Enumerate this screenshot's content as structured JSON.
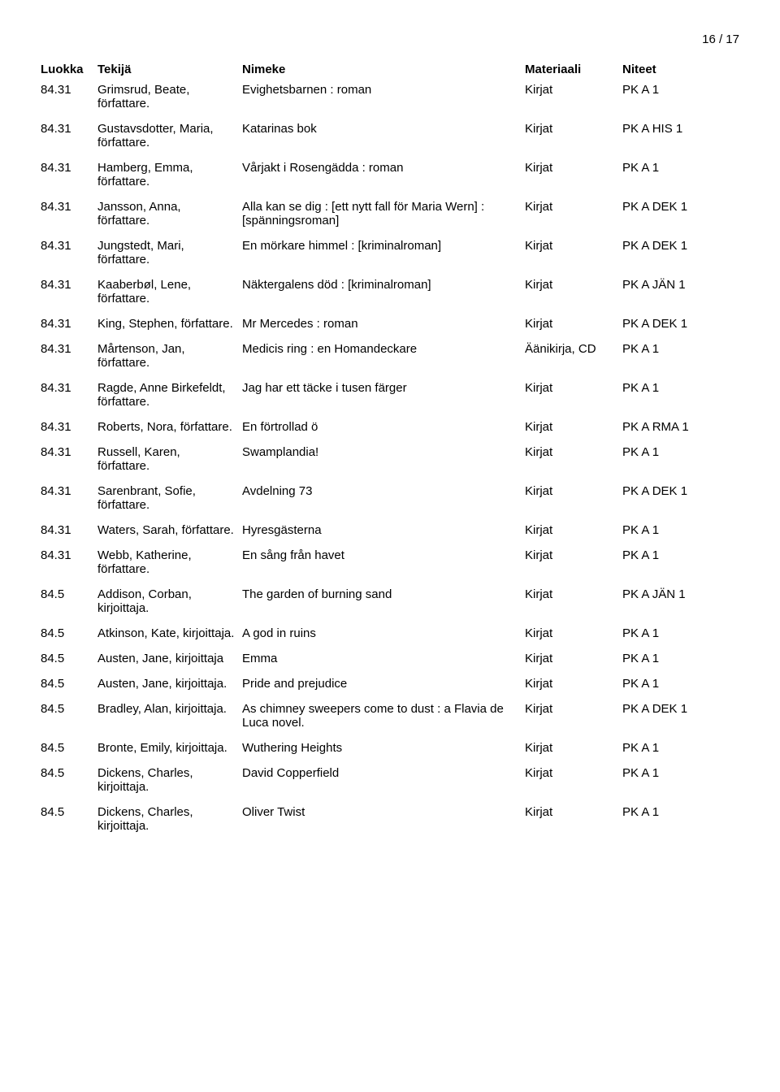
{
  "page_number": "16 / 17",
  "headers": {
    "luokka": "Luokka",
    "tekija": "Tekijä",
    "nimeke": "Nimeke",
    "materiaali": "Materiaali",
    "niteet": "Niteet"
  },
  "rows": [
    {
      "luokka": "84.31",
      "tekija": "Grimsrud, Beate, författare.",
      "nimeke": "Evighetsbarnen : roman",
      "materiaali": "Kirjat",
      "niteet": "PK A 1"
    },
    {
      "luokka": "84.31",
      "tekija": "Gustavsdotter, Maria, författare.",
      "nimeke": "Katarinas bok",
      "materiaali": "Kirjat",
      "niteet": "PK A HIS 1"
    },
    {
      "luokka": "84.31",
      "tekija": "Hamberg, Emma, författare.",
      "nimeke": "Vårjakt i Rosengädda : roman",
      "materiaali": "Kirjat",
      "niteet": "PK A 1"
    },
    {
      "luokka": "84.31",
      "tekija": "Jansson, Anna, författare.",
      "nimeke": "Alla kan se dig : [ett nytt fall för Maria Wern] : [spänningsroman]",
      "materiaali": "Kirjat",
      "niteet": "PK A DEK 1"
    },
    {
      "luokka": "84.31",
      "tekija": "Jungstedt, Mari, författare.",
      "nimeke": "En mörkare himmel : [kriminalroman]",
      "materiaali": "Kirjat",
      "niteet": "PK A DEK 1"
    },
    {
      "luokka": "84.31",
      "tekija": "Kaaberbøl, Lene, författare.",
      "nimeke": "Näktergalens död : [kriminalroman]",
      "materiaali": "Kirjat",
      "niteet": "PK A JÄN 1"
    },
    {
      "luokka": "84.31",
      "tekija": "King, Stephen, författare.",
      "nimeke": "Mr Mercedes : roman",
      "materiaali": "Kirjat",
      "niteet": "PK A DEK 1"
    },
    {
      "luokka": "84.31",
      "tekija": "Mårtenson, Jan, författare.",
      "nimeke": "Medicis ring : en Homandeckare",
      "materiaali": "Äänikirja, CD",
      "niteet": "PK A 1"
    },
    {
      "luokka": "84.31",
      "tekija": "Ragde, Anne Birkefeldt, författare.",
      "nimeke": "Jag har ett täcke i tusen färger",
      "materiaali": "Kirjat",
      "niteet": "PK A 1"
    },
    {
      "luokka": "84.31",
      "tekija": "Roberts, Nora, författare.",
      "nimeke": "En förtrollad ö",
      "materiaali": "Kirjat",
      "niteet": "PK A RMA 1"
    },
    {
      "luokka": "84.31",
      "tekija": "Russell, Karen, författare.",
      "nimeke": "Swamplandia!",
      "materiaali": "Kirjat",
      "niteet": "PK A 1"
    },
    {
      "luokka": "84.31",
      "tekija": "Sarenbrant, Sofie, författare.",
      "nimeke": "Avdelning 73",
      "materiaali": "Kirjat",
      "niteet": "PK A DEK 1"
    },
    {
      "luokka": "84.31",
      "tekija": "Waters, Sarah, författare.",
      "nimeke": "Hyresgästerna",
      "materiaali": "Kirjat",
      "niteet": "PK A 1"
    },
    {
      "luokka": "84.31",
      "tekija": "Webb, Katherine, författare.",
      "nimeke": "En sång från havet",
      "materiaali": "Kirjat",
      "niteet": "PK A 1"
    },
    {
      "luokka": "84.5",
      "tekija": "Addison, Corban, kirjoittaja.",
      "nimeke": "The garden of burning sand",
      "materiaali": "Kirjat",
      "niteet": "PK A JÄN 1"
    },
    {
      "luokka": "84.5",
      "tekija": "Atkinson, Kate, kirjoittaja.",
      "nimeke": "A god in ruins",
      "materiaali": "Kirjat",
      "niteet": "PK A 1"
    },
    {
      "luokka": "84.5",
      "tekija": "Austen, Jane, kirjoittaja",
      "nimeke": "Emma",
      "materiaali": "Kirjat",
      "niteet": "PK A 1"
    },
    {
      "luokka": "84.5",
      "tekija": "Austen, Jane, kirjoittaja.",
      "nimeke": "Pride and prejudice",
      "materiaali": "Kirjat",
      "niteet": "PK A 1"
    },
    {
      "luokka": "84.5",
      "tekija": "Bradley, Alan, kirjoittaja.",
      "nimeke": "As chimney sweepers come to dust : a Flavia de Luca novel.",
      "materiaali": "Kirjat",
      "niteet": "PK A DEK 1"
    },
    {
      "luokka": "84.5",
      "tekija": "Bronte, Emily, kirjoittaja.",
      "nimeke": "Wuthering Heights",
      "materiaali": "Kirjat",
      "niteet": "PK A 1"
    },
    {
      "luokka": "84.5",
      "tekija": "Dickens, Charles, kirjoittaja.",
      "nimeke": "David Copperfield",
      "materiaali": "Kirjat",
      "niteet": "PK A 1"
    },
    {
      "luokka": "84.5",
      "tekija": "Dickens, Charles, kirjoittaja.",
      "nimeke": "Oliver Twist",
      "materiaali": "Kirjat",
      "niteet": "PK A 1"
    }
  ]
}
